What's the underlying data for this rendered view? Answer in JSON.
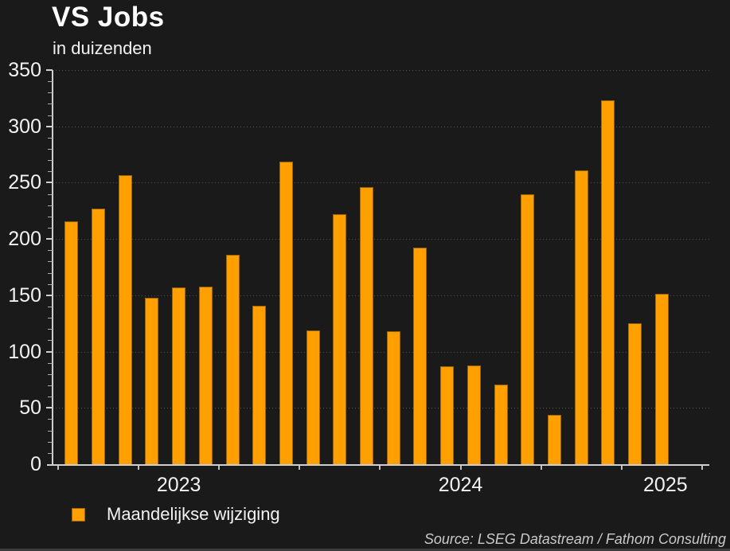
{
  "title": "VS Jobs",
  "subtitle": "in duizenden",
  "legend": {
    "label": "Maandelijkse wijziging"
  },
  "source": "Source: LSEG Datastream / Fathom Consulting",
  "colors": {
    "background": "#1A1A1A",
    "bar_fill": "#FFA000",
    "bar_border": "#9A6508",
    "axis": "#CFCFCF",
    "gridline": "#4E4E4E",
    "text": "#F2F2F2",
    "source_text": "#C9C9C9"
  },
  "chart_data": {
    "type": "bar",
    "title": "VS Jobs",
    "subtitle": "in duizenden",
    "series_name": "Maandelijkse wijziging",
    "xlabel": "",
    "ylabel": "",
    "ylim": [
      0,
      350
    ],
    "ytick_step": 50,
    "y_minor_tick_step": 10,
    "grid": "horizontal dotted lines at major y ticks",
    "legend_position": "bottom-left",
    "x_minor_ticks": "quarterly",
    "x_year_labels": [
      "2023",
      "2024",
      "2025"
    ],
    "categories": [
      "2023-04",
      "2023-05",
      "2023-06",
      "2023-07",
      "2023-08",
      "2023-09",
      "2023-10",
      "2023-11",
      "2023-12",
      "2024-01",
      "2024-02",
      "2024-03",
      "2024-04",
      "2024-05",
      "2024-06",
      "2024-07",
      "2024-08",
      "2024-09",
      "2024-10",
      "2024-11",
      "2024-12",
      "2025-01",
      "2025-02"
    ],
    "values": [
      216,
      227,
      257,
      148,
      157,
      158,
      186,
      141,
      269,
      119,
      222,
      246,
      118,
      192,
      87,
      88,
      71,
      240,
      44,
      261,
      323,
      125,
      151
    ]
  }
}
